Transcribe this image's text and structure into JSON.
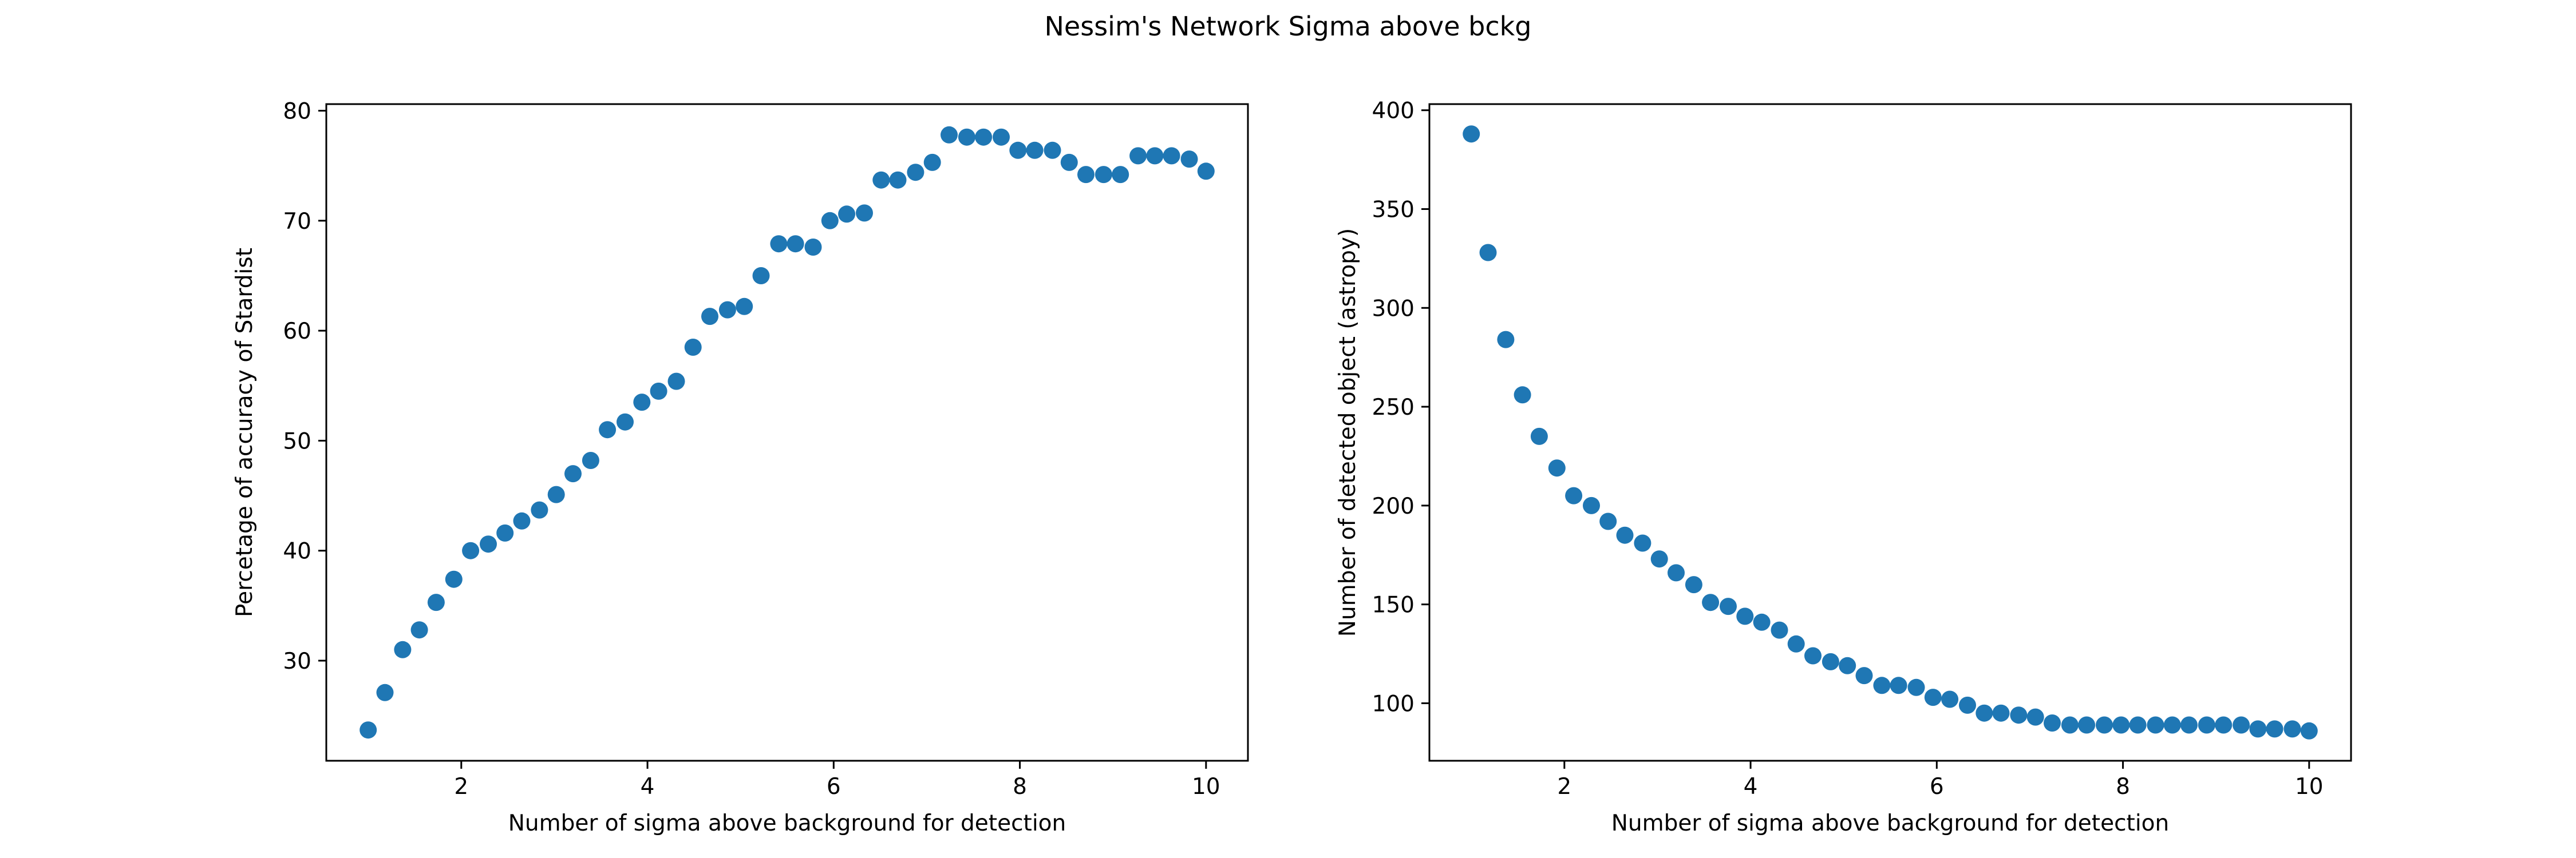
{
  "figure": {
    "suptitle": "Nessim's Network Sigma above bckg"
  },
  "chart_data": [
    {
      "type": "scatter",
      "xlabel": "Number of sigma above background for detection",
      "ylabel": "Percetage of accuracy of Stardist",
      "xlim": [
        0.55,
        10.45
      ],
      "ylim": [
        20.9,
        80.6
      ],
      "xticks": [
        2,
        4,
        6,
        8,
        10
      ],
      "yticks": [
        30,
        40,
        50,
        60,
        70,
        80
      ],
      "grid": false,
      "marker_color": "#1f77b4",
      "x": [
        1.0,
        1.18,
        1.37,
        1.55,
        1.73,
        1.92,
        2.1,
        2.29,
        2.47,
        2.65,
        2.84,
        3.02,
        3.2,
        3.39,
        3.57,
        3.76,
        3.94,
        4.12,
        4.31,
        4.49,
        4.67,
        4.86,
        5.04,
        5.22,
        5.41,
        5.59,
        5.78,
        5.96,
        6.14,
        6.33,
        6.51,
        6.69,
        6.88,
        7.06,
        7.24,
        7.43,
        7.61,
        7.8,
        7.98,
        8.16,
        8.35,
        8.53,
        8.71,
        8.9,
        9.08,
        9.27,
        9.45,
        9.63,
        9.82,
        10.0
      ],
      "y": [
        23.7,
        27.1,
        31.0,
        32.8,
        35.3,
        37.4,
        40.0,
        40.6,
        41.6,
        42.7,
        43.7,
        45.1,
        47.0,
        48.2,
        51.0,
        51.7,
        53.5,
        54.5,
        55.4,
        58.5,
        61.3,
        61.9,
        62.2,
        65.0,
        67.9,
        67.9,
        67.6,
        70.0,
        70.6,
        70.7,
        73.7,
        73.7,
        74.4,
        75.3,
        77.8,
        77.6,
        77.6,
        77.6,
        76.4,
        76.4,
        76.4,
        75.3,
        74.2,
        74.2,
        74.2,
        75.9,
        75.9,
        75.9,
        75.6,
        74.5
      ]
    },
    {
      "type": "scatter",
      "xlabel": "Number of sigma above background for detection",
      "ylabel": "Number of detected object (astropy)",
      "xlim": [
        0.55,
        10.45
      ],
      "ylim": [
        70.9,
        403.1
      ],
      "xticks": [
        2,
        4,
        6,
        8,
        10
      ],
      "yticks": [
        100,
        150,
        200,
        250,
        300,
        350,
        400
      ],
      "grid": false,
      "marker_color": "#1f77b4",
      "x": [
        1.0,
        1.18,
        1.37,
        1.55,
        1.73,
        1.92,
        2.1,
        2.29,
        2.47,
        2.65,
        2.84,
        3.02,
        3.2,
        3.39,
        3.57,
        3.76,
        3.94,
        4.12,
        4.31,
        4.49,
        4.67,
        4.86,
        5.04,
        5.22,
        5.41,
        5.59,
        5.78,
        5.96,
        6.14,
        6.33,
        6.51,
        6.69,
        6.88,
        7.06,
        7.24,
        7.43,
        7.61,
        7.8,
        7.98,
        8.16,
        8.35,
        8.53,
        8.71,
        8.9,
        9.08,
        9.27,
        9.45,
        9.63,
        9.82,
        10.0
      ],
      "y": [
        388,
        328,
        284,
        256,
        235,
        219,
        205,
        200,
        192,
        185,
        181,
        173,
        166,
        160,
        151,
        149,
        144,
        141,
        137,
        130,
        124,
        121,
        119,
        114,
        109,
        109,
        108,
        103,
        102,
        99,
        95,
        95,
        94,
        93,
        90,
        89,
        89,
        89,
        89,
        89,
        89,
        89,
        89,
        89,
        89,
        89,
        87,
        87,
        87,
        86
      ]
    }
  ]
}
